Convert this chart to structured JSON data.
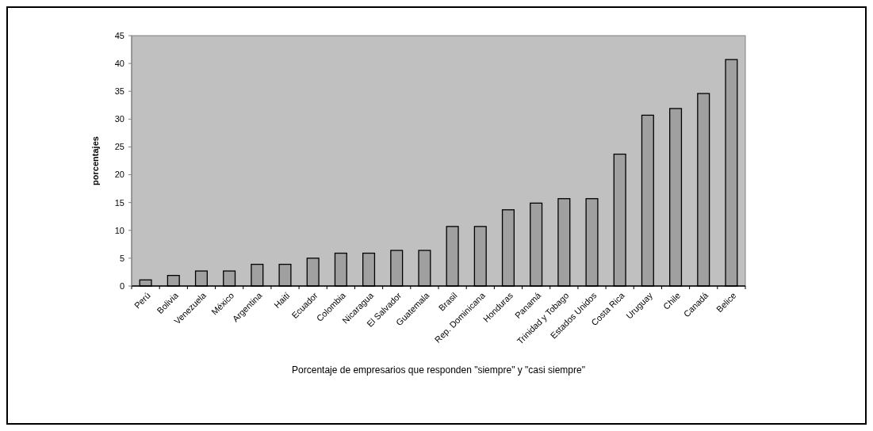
{
  "chart_data": {
    "type": "bar",
    "xlabel": "Porcentaje de empresarios que responden \"siempre\" y \"casi siempre\"",
    "ylabel": "porcentajes",
    "categories": [
      "Perú",
      "Bolivia",
      "Venezuela",
      "México",
      "Argentina",
      "Haití",
      "Ecuador",
      "Colombia",
      "Nicaragua",
      "El Salvador",
      "Guatemala",
      "Brasil",
      "Rep. Dominicana",
      "Honduras",
      "Panamá",
      "Trinidad y Tobago",
      "Estados Unidos",
      "Costa Rica",
      "Uruguay",
      "Chile",
      "Canadá",
      "Belice"
    ],
    "values": [
      1.1,
      1.9,
      2.7,
      2.7,
      3.9,
      3.9,
      5,
      5.9,
      5.9,
      6.4,
      6.4,
      10.7,
      10.7,
      13.7,
      14.9,
      15.7,
      15.7,
      23.7,
      30.7,
      31.9,
      34.6,
      40.7
    ],
    "color": "#a0a0a0",
    "ylim": [
      0,
      45
    ],
    "yticks": [
      0,
      5,
      10,
      15,
      20,
      25,
      30,
      35,
      40,
      45
    ],
    "grid": false
  }
}
